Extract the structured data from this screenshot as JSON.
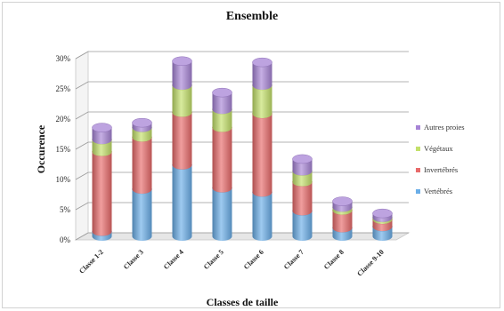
{
  "chart_data": {
    "type": "bar",
    "stacked": true,
    "title": "Ensemble",
    "xlabel": "Classes de taille",
    "ylabel": "Occurence",
    "ylim": [
      0,
      30
    ],
    "ytick_labels": [
      "0%",
      "5%",
      "10%",
      "15%",
      "20%",
      "25%",
      "30%"
    ],
    "categories": [
      "Classe 1-2",
      "Classe 3",
      "Classe 4",
      "Classe 5",
      "Classe 6",
      "Classe 7",
      "Classe 8",
      "Classe 9-10"
    ],
    "series": [
      {
        "name": "Vertébrés",
        "color": "#6aaee8",
        "values": [
          0.8,
          7.8,
          11.8,
          8.0,
          7.3,
          4.2,
          1.4,
          1.6
        ]
      },
      {
        "name": "Invertébrés",
        "color": "#e86a6a",
        "values": [
          13.2,
          8.6,
          8.7,
          10.0,
          13.0,
          4.8,
          2.9,
          1.2
        ]
      },
      {
        "name": "Végétaux",
        "color": "#c3e06a",
        "values": [
          2.0,
          1.6,
          4.5,
          3.0,
          4.7,
          1.8,
          0.5,
          0.3
        ]
      },
      {
        "name": "Autres proies",
        "color": "#a784d6",
        "values": [
          2.0,
          0.8,
          4.0,
          2.8,
          3.8,
          2.0,
          1.0,
          0.7
        ]
      }
    ],
    "legend_position": "right",
    "legend_labels": [
      "Autres proies",
      "Végétaux",
      "Invertébrés",
      "Vertébrés"
    ],
    "grid": true,
    "style": "3d-cylinder"
  }
}
